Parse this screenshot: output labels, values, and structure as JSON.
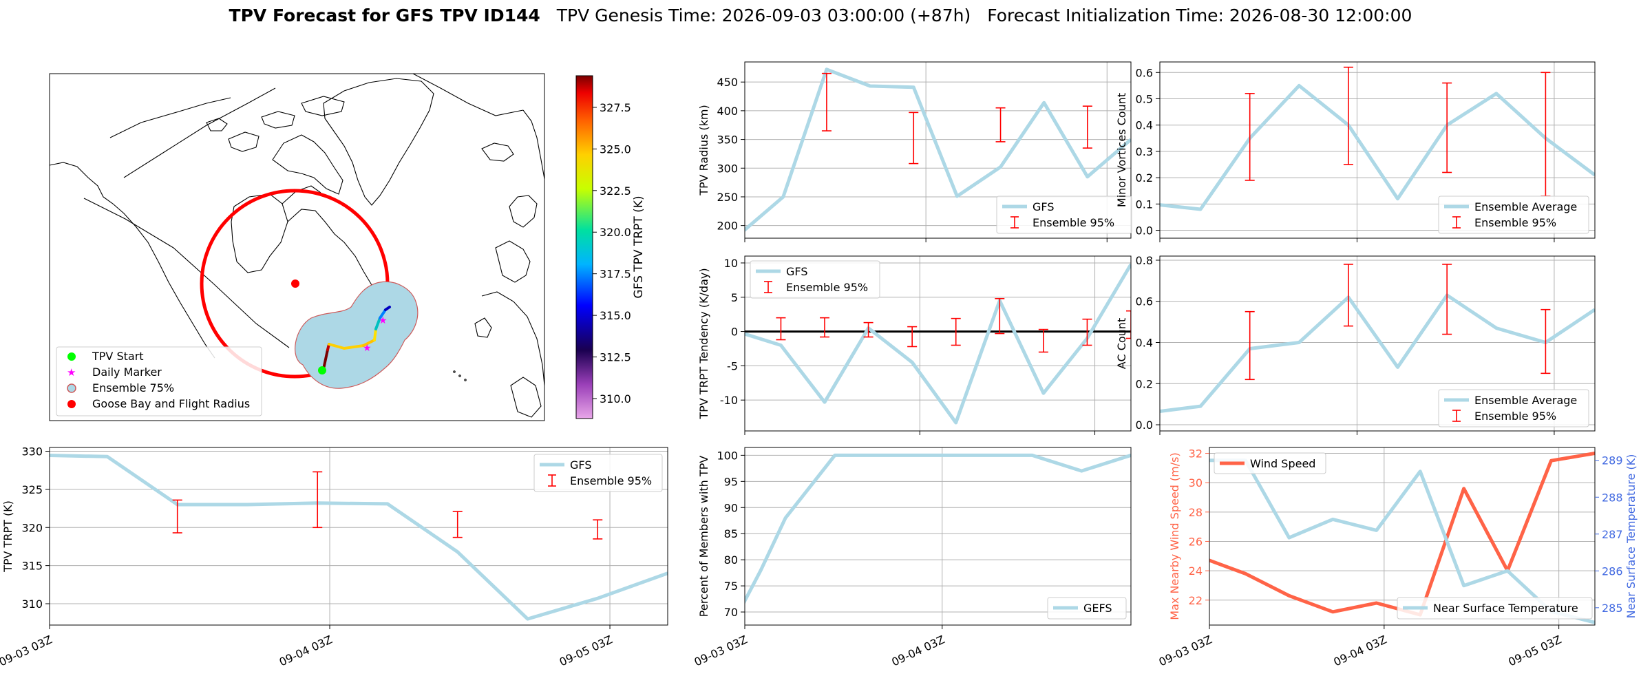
{
  "figure": {
    "title_bold": "TPV Forecast for GFS TPV ID144",
    "title_genesis": "TPV Genesis Time: 2026-09-03 03:00:00 (+87h)",
    "title_init": "Forecast Initialization Time: 2026-08-30 12:00:00"
  },
  "colors": {
    "gfs_line": "#add8e6",
    "error_bar": "#ff0000",
    "wind_line": "#ff6347",
    "temp_axis": "#4169e1",
    "flight_circle": "#ff0000",
    "ensemble_fill": "#add8e6",
    "ensemble_edge": "#cd5c5c",
    "start_marker": "#00ff00",
    "daily_marker": "#ff00ff",
    "goose_bay": "#ff0000"
  },
  "map": {
    "legend": [
      "TPV Start",
      "Daily Marker",
      "Ensemble 75%",
      "Goose Bay and Flight Radius"
    ],
    "colorbar": {
      "label": "GFS TPV TRPT (K)",
      "ticks": [
        "327.5",
        "325.0",
        "322.5",
        "320.0",
        "317.5",
        "315.0",
        "312.5",
        "310.0"
      ]
    }
  },
  "time_ticks": [
    "09-03 03Z",
    "09-04 03Z",
    "09-05 03Z"
  ],
  "chart_data": [
    {
      "id": "radius",
      "type": "line",
      "ylabel": "TPV Radius (km)",
      "ylim": [
        178,
        485
      ],
      "yticks": [
        200,
        250,
        300,
        350,
        400,
        450
      ],
      "x": [
        -0.07,
        0.53,
        1.13,
        1.73,
        2.33,
        2.93,
        3.53,
        4.13,
        4.73,
        5.33
      ],
      "series": [
        {
          "name": "GFS",
          "values": [
            185,
            250,
            472,
            443,
            441,
            251,
            302,
            414,
            285,
            350
          ]
        }
      ],
      "errorbars": [
        {
          "x": 1.13,
          "low": 365,
          "high": 465
        },
        {
          "x": 2.33,
          "low": 308,
          "high": 397
        },
        {
          "x": 3.53,
          "low": 346,
          "high": 405
        },
        {
          "x": 4.73,
          "low": 335,
          "high": 408
        }
      ],
      "legend": [
        "GFS",
        "Ensemble 95%"
      ],
      "legend_loc": "lower right",
      "grid": true
    },
    {
      "id": "minor",
      "type": "line",
      "ylabel": "Minor Vortices Count",
      "ylim": [
        -0.03,
        0.64
      ],
      "yticks": [
        0.0,
        0.1,
        0.2,
        0.3,
        0.4,
        0.5,
        0.6
      ],
      "x": [
        -0.07,
        0.33,
        0.73,
        1.13,
        1.53,
        1.93,
        2.33,
        2.73,
        3.13,
        3.53
      ],
      "series": [
        {
          "name": "Ensemble Average",
          "values": [
            0.1,
            0.08,
            0.35,
            0.55,
            0.4,
            0.12,
            0.4,
            0.52,
            0.35,
            0.21
          ]
        }
      ],
      "errorbars": [
        {
          "x": 0.73,
          "low": 0.19,
          "high": 0.52
        },
        {
          "x": 1.53,
          "low": 0.25,
          "high": 0.62
        },
        {
          "x": 2.33,
          "low": 0.22,
          "high": 0.56
        },
        {
          "x": 3.13,
          "low": 0.13,
          "high": 0.6
        }
      ],
      "legend": [
        "Ensemble Average",
        "Ensemble 95%"
      ],
      "legend_loc": "lower right",
      "grid": true
    },
    {
      "id": "tendency",
      "type": "line",
      "ylabel": "TPV TRPT Tendency (K/day)",
      "ylim": [
        -14.5,
        11
      ],
      "yticks": [
        -10,
        -5,
        0,
        5,
        10
      ],
      "x": [
        -0.07,
        0.33,
        0.73,
        1.13,
        1.53,
        1.93,
        2.33,
        2.73,
        3.13,
        3.53
      ],
      "series": [
        {
          "name": "GFS",
          "values": [
            0.0,
            -2.0,
            -10.3,
            0.5,
            -4.5,
            -13.3,
            4.5,
            -9.0,
            -1.0,
            9.8
          ]
        }
      ],
      "errorbars": [
        {
          "x": 0.33,
          "low": -1.2,
          "high": 2.0
        },
        {
          "x": 0.73,
          "low": -0.8,
          "high": 2.0
        },
        {
          "x": 1.13,
          "low": -0.8,
          "high": 1.3
        },
        {
          "x": 1.53,
          "low": -2.2,
          "high": 0.7
        },
        {
          "x": 1.93,
          "low": -2.0,
          "high": 1.9
        },
        {
          "x": 2.33,
          "low": -0.3,
          "high": 4.8
        },
        {
          "x": 2.73,
          "low": -3.0,
          "high": 0.3
        },
        {
          "x": 3.13,
          "low": -2.0,
          "high": 1.8
        },
        {
          "x": 3.53,
          "low": -1.0,
          "high": 3.0
        }
      ],
      "zero_line": true,
      "legend": [
        "GFS",
        "Ensemble 95%"
      ],
      "legend_loc": "upper left",
      "grid": true
    },
    {
      "id": "ac",
      "type": "line",
      "ylabel": "AC Count",
      "ylim": [
        -0.03,
        0.82
      ],
      "yticks": [
        0.0,
        0.2,
        0.4,
        0.6,
        0.8
      ],
      "x": [
        -0.07,
        0.33,
        0.73,
        1.13,
        1.53,
        1.93,
        2.33,
        2.73,
        3.13,
        3.53
      ],
      "series": [
        {
          "name": "Ensemble Average",
          "values": [
            0.06,
            0.09,
            0.37,
            0.4,
            0.62,
            0.28,
            0.63,
            0.47,
            0.4,
            0.56
          ]
        }
      ],
      "errorbars": [
        {
          "x": 0.73,
          "low": 0.22,
          "high": 0.55
        },
        {
          "x": 1.53,
          "low": 0.48,
          "high": 0.78
        },
        {
          "x": 2.33,
          "low": 0.44,
          "high": 0.78
        },
        {
          "x": 3.13,
          "low": 0.25,
          "high": 0.56
        }
      ],
      "legend": [
        "Ensemble Average",
        "Ensemble 95%"
      ],
      "legend_loc": "lower right",
      "grid": true
    },
    {
      "id": "trpt",
      "type": "line",
      "ylabel": "TPV TRPT (K)",
      "ylim": [
        307.2,
        330.5
      ],
      "yticks": [
        310,
        315,
        320,
        325,
        330
      ],
      "x": [
        -0.07,
        0.33,
        0.73,
        1.13,
        1.53,
        1.93,
        2.33,
        2.73,
        3.13,
        3.53
      ],
      "series": [
        {
          "name": "GFS",
          "values": [
            329.5,
            329.3,
            323.0,
            323.0,
            323.2,
            323.1,
            316.8,
            308.0,
            310.7,
            314.0
          ]
        }
      ],
      "errorbars": [
        {
          "x": 0.73,
          "low": 319.3,
          "high": 323.6
        },
        {
          "x": 1.53,
          "low": 320.0,
          "high": 327.3
        },
        {
          "x": 2.33,
          "low": 318.7,
          "high": 322.1
        },
        {
          "x": 3.13,
          "low": 318.5,
          "high": 321.0
        }
      ],
      "legend": [
        "GFS",
        "Ensemble 95%"
      ],
      "legend_loc": "upper right",
      "grid": true
    },
    {
      "id": "members",
      "type": "line",
      "ylabel": "Percent of Members with TPV",
      "ylim": [
        67.5,
        101.5
      ],
      "yticks": [
        70,
        75,
        80,
        85,
        90,
        95,
        100
      ],
      "x": [
        -0.07,
        0.13,
        0.33,
        0.73,
        1.13,
        1.53,
        1.93,
        2.33,
        2.73,
        3.13
      ],
      "series": [
        {
          "name": "GEFS",
          "values": [
            69,
            78,
            88,
            100,
            100,
            100,
            100,
            100,
            97,
            100
          ]
        }
      ],
      "legend": [
        "GEFS"
      ],
      "legend_loc": "lower right",
      "grid": true
    },
    {
      "id": "wind",
      "type": "line",
      "ylabel": "Max Nearby Wind Speed (m/s)",
      "ylabel_right": "Near Surface Temperature (K)",
      "ylim": [
        20.3,
        32.4
      ],
      "yticks": [
        22,
        24,
        26,
        28,
        30,
        32
      ],
      "ylim_right": [
        284.53,
        289.35
      ],
      "yticks_right": [
        285,
        286,
        287,
        288,
        289
      ],
      "x": [
        -0.07,
        0.33,
        0.73,
        1.13,
        1.53,
        1.93,
        2.33,
        2.73,
        3.13,
        3.53
      ],
      "series": [
        {
          "name": "Wind Speed",
          "axis": "left",
          "values": [
            24.9,
            23.8,
            22.3,
            21.2,
            21.8,
            21.0,
            29.6,
            24.0,
            31.5,
            32.0
          ]
        },
        {
          "name": "Near Surface Temperature",
          "axis": "right",
          "values": [
            289.0,
            289.0,
            286.9,
            287.4,
            287.1,
            288.7,
            285.6,
            286.0,
            284.9,
            284.6
          ]
        }
      ],
      "legend": [
        "Wind Speed",
        "Near Surface Temperature"
      ],
      "grid": true
    }
  ]
}
